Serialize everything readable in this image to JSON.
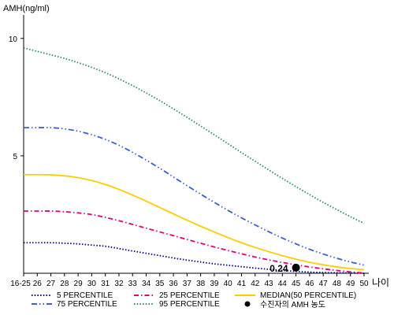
{
  "chart_data": {
    "type": "line",
    "ylabel": "AMH(ng/ml)",
    "xlabel": "나이",
    "categories": [
      "16-25",
      "26",
      "27",
      "28",
      "29",
      "30",
      "31",
      "32",
      "33",
      "34",
      "35",
      "36",
      "37",
      "38",
      "39",
      "40",
      "41",
      "42",
      "43",
      "44",
      "45",
      "46",
      "47",
      "48",
      "49",
      "50"
    ],
    "yticks": [
      5,
      10
    ],
    "ylim": [
      0,
      11
    ],
    "grid": false,
    "legend_position": "bottom",
    "series": [
      {
        "name": "5 PERCENTILE",
        "color": "#000080",
        "dash": "dotted",
        "values": [
          1.3,
          1.3,
          1.3,
          1.28,
          1.25,
          1.2,
          1.15,
          1.05,
          0.95,
          0.85,
          0.75,
          0.65,
          0.56,
          0.48,
          0.4,
          0.34,
          0.28,
          0.22,
          0.17,
          0.12,
          0.08,
          0.05,
          0.03,
          0.02,
          0.01,
          0.0
        ]
      },
      {
        "name": "25 PERCENTILE",
        "color": "#e0007a",
        "dash": "dashdot",
        "values": [
          2.65,
          2.65,
          2.65,
          2.62,
          2.57,
          2.5,
          2.38,
          2.24,
          2.08,
          1.92,
          1.76,
          1.6,
          1.44,
          1.28,
          1.12,
          0.97,
          0.83,
          0.69,
          0.57,
          0.46,
          0.36,
          0.27,
          0.19,
          0.12,
          0.06,
          0.01
        ]
      },
      {
        "name": "MEDIAN(50 PERCENTILE)",
        "color": "#ffcc00",
        "dash": "solid",
        "values": [
          4.2,
          4.2,
          4.19,
          4.15,
          4.07,
          3.95,
          3.78,
          3.57,
          3.33,
          3.07,
          2.8,
          2.53,
          2.26,
          2.0,
          1.76,
          1.52,
          1.3,
          1.1,
          0.92,
          0.75,
          0.6,
          0.47,
          0.36,
          0.27,
          0.2,
          0.15
        ]
      },
      {
        "name": "75 PERCENTILE",
        "color": "#3a5fcd",
        "dash": "dashdotdot",
        "values": [
          6.2,
          6.2,
          6.2,
          6.15,
          6.05,
          5.9,
          5.7,
          5.45,
          5.15,
          4.82,
          4.47,
          4.1,
          3.73,
          3.37,
          3.02,
          2.68,
          2.36,
          2.06,
          1.77,
          1.5,
          1.25,
          1.02,
          0.82,
          0.64,
          0.48,
          0.35
        ]
      },
      {
        "name": "95 PERCENTILE",
        "color": "#2e8b57",
        "dash": "dotted",
        "values": [
          9.6,
          9.45,
          9.3,
          9.15,
          8.97,
          8.77,
          8.54,
          8.28,
          7.99,
          7.68,
          7.35,
          7.0,
          6.64,
          6.27,
          5.9,
          5.52,
          5.14,
          4.77,
          4.4,
          4.04,
          3.69,
          3.35,
          3.02,
          2.71,
          2.41,
          2.13
        ]
      }
    ],
    "marker": {
      "name": "수진자의 AMH 농도",
      "x": "45",
      "y": 0.24,
      "label": "0.24"
    }
  }
}
